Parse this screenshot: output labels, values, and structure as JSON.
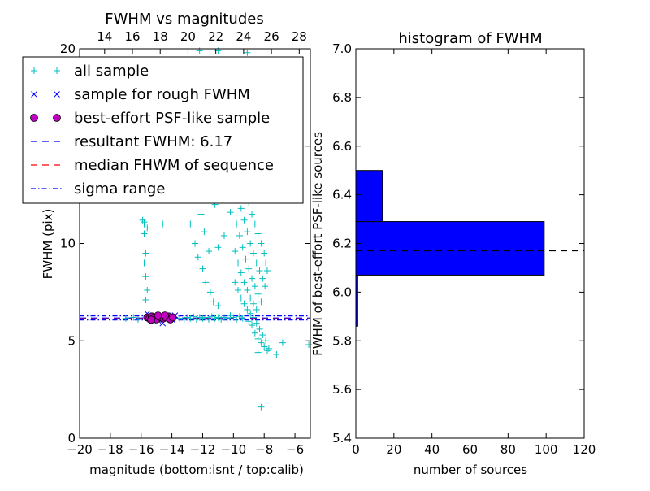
{
  "chart_data": [
    {
      "type": "scatter",
      "title": "FWHM vs magnitudes",
      "xlabel": "magnitude (bottom:isnt / top:calib)",
      "ylabel": "FWHM (pix)",
      "xlim": [
        -20,
        -5
      ],
      "ylim": [
        0,
        20
      ],
      "xticks": [
        -20,
        -18,
        -16,
        -14,
        -12,
        -10,
        -8,
        -6
      ],
      "xtick_labels": [
        "−20",
        "−18",
        "−16",
        "−14",
        "−12",
        "−10",
        "−8",
        "−6"
      ],
      "yticks": [
        0,
        5,
        10,
        15,
        20
      ],
      "ytick_labels": [
        "0",
        "5",
        "10",
        "15",
        "20"
      ],
      "top_xlim": [
        12.2,
        28.8
      ],
      "top_xticks": [
        14,
        16,
        18,
        20,
        22,
        24,
        26,
        28
      ],
      "top_xtick_labels": [
        "14",
        "16",
        "18",
        "20",
        "22",
        "24",
        "26",
        "28"
      ],
      "legend": {
        "placement": "upper-left",
        "entries": [
          {
            "label": "all sample",
            "marker": "plus",
            "color": "#00bfbf"
          },
          {
            "label": "sample for rough FWHM",
            "marker": "x",
            "color": "#0000ff"
          },
          {
            "label": "best-effort PSF-like sample",
            "marker": "circle",
            "color": "#bf00bf"
          },
          {
            "label": "resultant FWHM: 6.17",
            "line": "dashed",
            "color": "#0000ff"
          },
          {
            "label": "median FHWM of sequence",
            "line": "dashed",
            "color": "#ff0000"
          },
          {
            "label": "sigma range",
            "line": "dashdot",
            "color": "#0000ff"
          }
        ]
      },
      "hlines": [
        {
          "name": "resultant FWHM",
          "y": 6.17,
          "style": "dashed",
          "color": "#0000ff"
        },
        {
          "name": "median FHWM of sequence",
          "y": 6.13,
          "style": "dashed",
          "color": "#ff0000"
        },
        {
          "name": "sigma range upper",
          "y": 6.28,
          "style": "dashdot",
          "color": "#0000ff"
        },
        {
          "name": "sigma range lower",
          "y": 6.07,
          "style": "dashdot",
          "color": "#0000ff"
        }
      ],
      "series": [
        {
          "name": "all sample",
          "marker": "plus",
          "color": "#00bfbf",
          "points": [
            [
              -15.9,
              11.2
            ],
            [
              -15.8,
              11.1
            ],
            [
              -15.8,
              10.5
            ],
            [
              -15.7,
              9.5
            ],
            [
              -15.8,
              9.0
            ],
            [
              -15.7,
              8.3
            ],
            [
              -15.6,
              7.6
            ],
            [
              -15.7,
              7.1
            ],
            [
              -15.8,
              11.0
            ],
            [
              -15.6,
              10.8
            ],
            [
              -14.6,
              11.0
            ],
            [
              -17.0,
              6.15
            ],
            [
              -16.5,
              6.2
            ],
            [
              -16.2,
              6.1
            ],
            [
              -15.4,
              6.25
            ],
            [
              -13.8,
              6.2
            ],
            [
              -13.5,
              6.15
            ],
            [
              -13.2,
              6.1
            ],
            [
              -13.0,
              6.2
            ],
            [
              -12.8,
              6.15
            ],
            [
              -12.6,
              6.25
            ],
            [
              -12.4,
              6.1
            ],
            [
              -12.2,
              6.2
            ],
            [
              -12.0,
              6.15
            ],
            [
              -11.8,
              6.2
            ],
            [
              -11.6,
              6.1
            ],
            [
              -11.4,
              6.25
            ],
            [
              -11.2,
              6.15
            ],
            [
              -11.0,
              6.2
            ],
            [
              -10.8,
              6.1
            ],
            [
              -10.6,
              6.2
            ],
            [
              -10.4,
              6.15
            ],
            [
              -10.2,
              6.3
            ],
            [
              -10.0,
              6.2
            ],
            [
              -9.8,
              6.1
            ],
            [
              -9.6,
              6.25
            ],
            [
              -9.4,
              6.15
            ],
            [
              -12.8,
              11.0
            ],
            [
              -12.5,
              10.0
            ],
            [
              -12.3,
              9.3
            ],
            [
              -12.0,
              8.7
            ],
            [
              -11.8,
              8.0
            ],
            [
              -11.5,
              7.5
            ],
            [
              -11.3,
              7.0
            ],
            [
              -11.0,
              6.8
            ],
            [
              -11.6,
              9.6
            ],
            [
              -11.9,
              10.6
            ],
            [
              -12.1,
              11.5
            ],
            [
              -11.2,
              12.0
            ],
            [
              -11.7,
              12.6
            ],
            [
              -10.8,
              13.5
            ],
            [
              -10.5,
              12.8
            ],
            [
              -10.2,
              11.6
            ],
            [
              -10.6,
              10.4
            ],
            [
              -11.0,
              9.8
            ],
            [
              -9.8,
              14.5
            ],
            [
              -9.6,
              13.9
            ],
            [
              -9.4,
              13.3
            ],
            [
              -9.2,
              12.7
            ],
            [
              -9.0,
              12.1
            ],
            [
              -8.8,
              11.5
            ],
            [
              -8.6,
              11.0
            ],
            [
              -8.4,
              10.5
            ],
            [
              -8.2,
              10.0
            ],
            [
              -8.0,
              9.5
            ],
            [
              -7.9,
              9.0
            ],
            [
              -7.8,
              8.6
            ],
            [
              -9.7,
              12.4
            ],
            [
              -9.5,
              11.8
            ],
            [
              -9.3,
              11.2
            ],
            [
              -9.1,
              10.6
            ],
            [
              -8.9,
              10.0
            ],
            [
              -8.7,
              9.5
            ],
            [
              -8.5,
              9.0
            ],
            [
              -8.3,
              8.6
            ],
            [
              -8.1,
              8.2
            ],
            [
              -7.95,
              7.8
            ],
            [
              -9.8,
              11.0
            ],
            [
              -9.6,
              10.4
            ],
            [
              -9.4,
              9.8
            ],
            [
              -9.2,
              9.2
            ],
            [
              -9.0,
              8.7
            ],
            [
              -8.8,
              8.2
            ],
            [
              -8.6,
              7.8
            ],
            [
              -8.4,
              7.4
            ],
            [
              -8.2,
              7.0
            ],
            [
              -9.9,
              9.6
            ],
            [
              -9.7,
              9.0
            ],
            [
              -9.5,
              8.5
            ],
            [
              -9.3,
              8.0
            ],
            [
              -9.1,
              7.6
            ],
            [
              -8.9,
              7.2
            ],
            [
              -8.7,
              6.9
            ],
            [
              -8.5,
              6.6
            ],
            [
              -9.9,
              8.0
            ],
            [
              -9.7,
              7.6
            ],
            [
              -9.5,
              7.2
            ],
            [
              -9.3,
              6.9
            ],
            [
              -9.1,
              6.6
            ],
            [
              -8.9,
              6.4
            ],
            [
              -8.7,
              6.2
            ],
            [
              -8.5,
              5.9
            ],
            [
              -8.3,
              5.6
            ],
            [
              -8.1,
              5.3
            ],
            [
              -7.9,
              5.0
            ],
            [
              -8.6,
              5.4
            ],
            [
              -8.4,
              5.1
            ],
            [
              -8.2,
              4.9
            ],
            [
              -8.0,
              4.7
            ],
            [
              -7.8,
              4.5
            ],
            [
              -8.8,
              5.8
            ],
            [
              -9.0,
              6.0
            ],
            [
              -9.2,
              14.8
            ],
            [
              -9.0,
              15.6
            ],
            [
              -9.2,
              16.8
            ],
            [
              -9.3,
              17.8
            ],
            [
              -9.4,
              18.6
            ],
            [
              -9.0,
              19.3
            ],
            [
              -9.6,
              15.2
            ],
            [
              -9.8,
              15.8
            ],
            [
              -10.0,
              16.4
            ],
            [
              -10.4,
              15.6
            ],
            [
              -11.2,
              14.8
            ],
            [
              -11.0,
              14.0
            ],
            [
              -10.2,
              13.2
            ],
            [
              -8.2,
              1.6
            ],
            [
              -7.2,
              4.3
            ],
            [
              -7.7,
              4.6
            ],
            [
              -8.4,
              4.4
            ],
            [
              -6.8,
              4.9
            ],
            [
              -5.1,
              4.8
            ],
            [
              -12.2,
              19.9
            ],
            [
              -11.0,
              19.9
            ],
            [
              -9.1,
              19.8
            ]
          ]
        },
        {
          "name": "sample for rough FWHM",
          "marker": "x",
          "color": "#0000ff",
          "points": [
            [
              -15.6,
              6.4
            ],
            [
              -15.4,
              6.1
            ],
            [
              -15.2,
              6.3
            ],
            [
              -15.0,
              6.2
            ],
            [
              -14.8,
              6.25
            ],
            [
              -14.6,
              5.9
            ],
            [
              -14.4,
              6.15
            ],
            [
              -14.2,
              6.2
            ],
            [
              -14.0,
              6.1
            ],
            [
              -13.8,
              6.3
            ],
            [
              -15.5,
              6.2
            ],
            [
              -14.9,
              6.05
            ],
            [
              -14.3,
              6.3
            ]
          ]
        },
        {
          "name": "best-effort PSF-like sample",
          "marker": "circle",
          "color": "#bf00bf",
          "points": [
            [
              -15.6,
              6.2
            ],
            [
              -15.45,
              6.15
            ],
            [
              -15.3,
              6.25
            ],
            [
              -15.15,
              6.2
            ],
            [
              -15.0,
              6.1
            ],
            [
              -14.85,
              6.25
            ],
            [
              -14.7,
              6.2
            ],
            [
              -14.55,
              6.15
            ],
            [
              -14.4,
              6.2
            ],
            [
              -14.25,
              6.25
            ],
            [
              -14.1,
              6.1
            ],
            [
              -13.95,
              6.2
            ],
            [
              -15.35,
              6.08
            ],
            [
              -14.9,
              6.3
            ],
            [
              -14.45,
              6.3
            ]
          ]
        }
      ]
    },
    {
      "type": "bar",
      "orientation": "horizontal",
      "title": "histogram of FWHM",
      "xlabel": "number of sources",
      "ylabel": "FWHM of best-effort PSF-like sources",
      "xlim": [
        0,
        120
      ],
      "ylim": [
        5.4,
        7.0
      ],
      "xticks": [
        0,
        20,
        40,
        60,
        80,
        100,
        120
      ],
      "xtick_labels": [
        "0",
        "20",
        "40",
        "60",
        "80",
        "100",
        "120"
      ],
      "yticks": [
        5.4,
        5.6,
        5.8,
        6.0,
        6.2,
        6.4,
        6.6,
        6.8,
        7.0
      ],
      "ytick_labels": [
        "5.4",
        "5.6",
        "5.8",
        "6.0",
        "6.2",
        "6.4",
        "6.6",
        "6.8",
        "7.0"
      ],
      "color": "#0000ff",
      "bins": [
        {
          "y0": 5.86,
          "y1": 6.07,
          "count": 1
        },
        {
          "y0": 6.07,
          "y1": 6.29,
          "count": 99
        },
        {
          "y0": 6.29,
          "y1": 6.5,
          "count": 14
        }
      ],
      "hline": {
        "y": 6.17,
        "style": "dashed",
        "color": "#000000"
      }
    }
  ]
}
